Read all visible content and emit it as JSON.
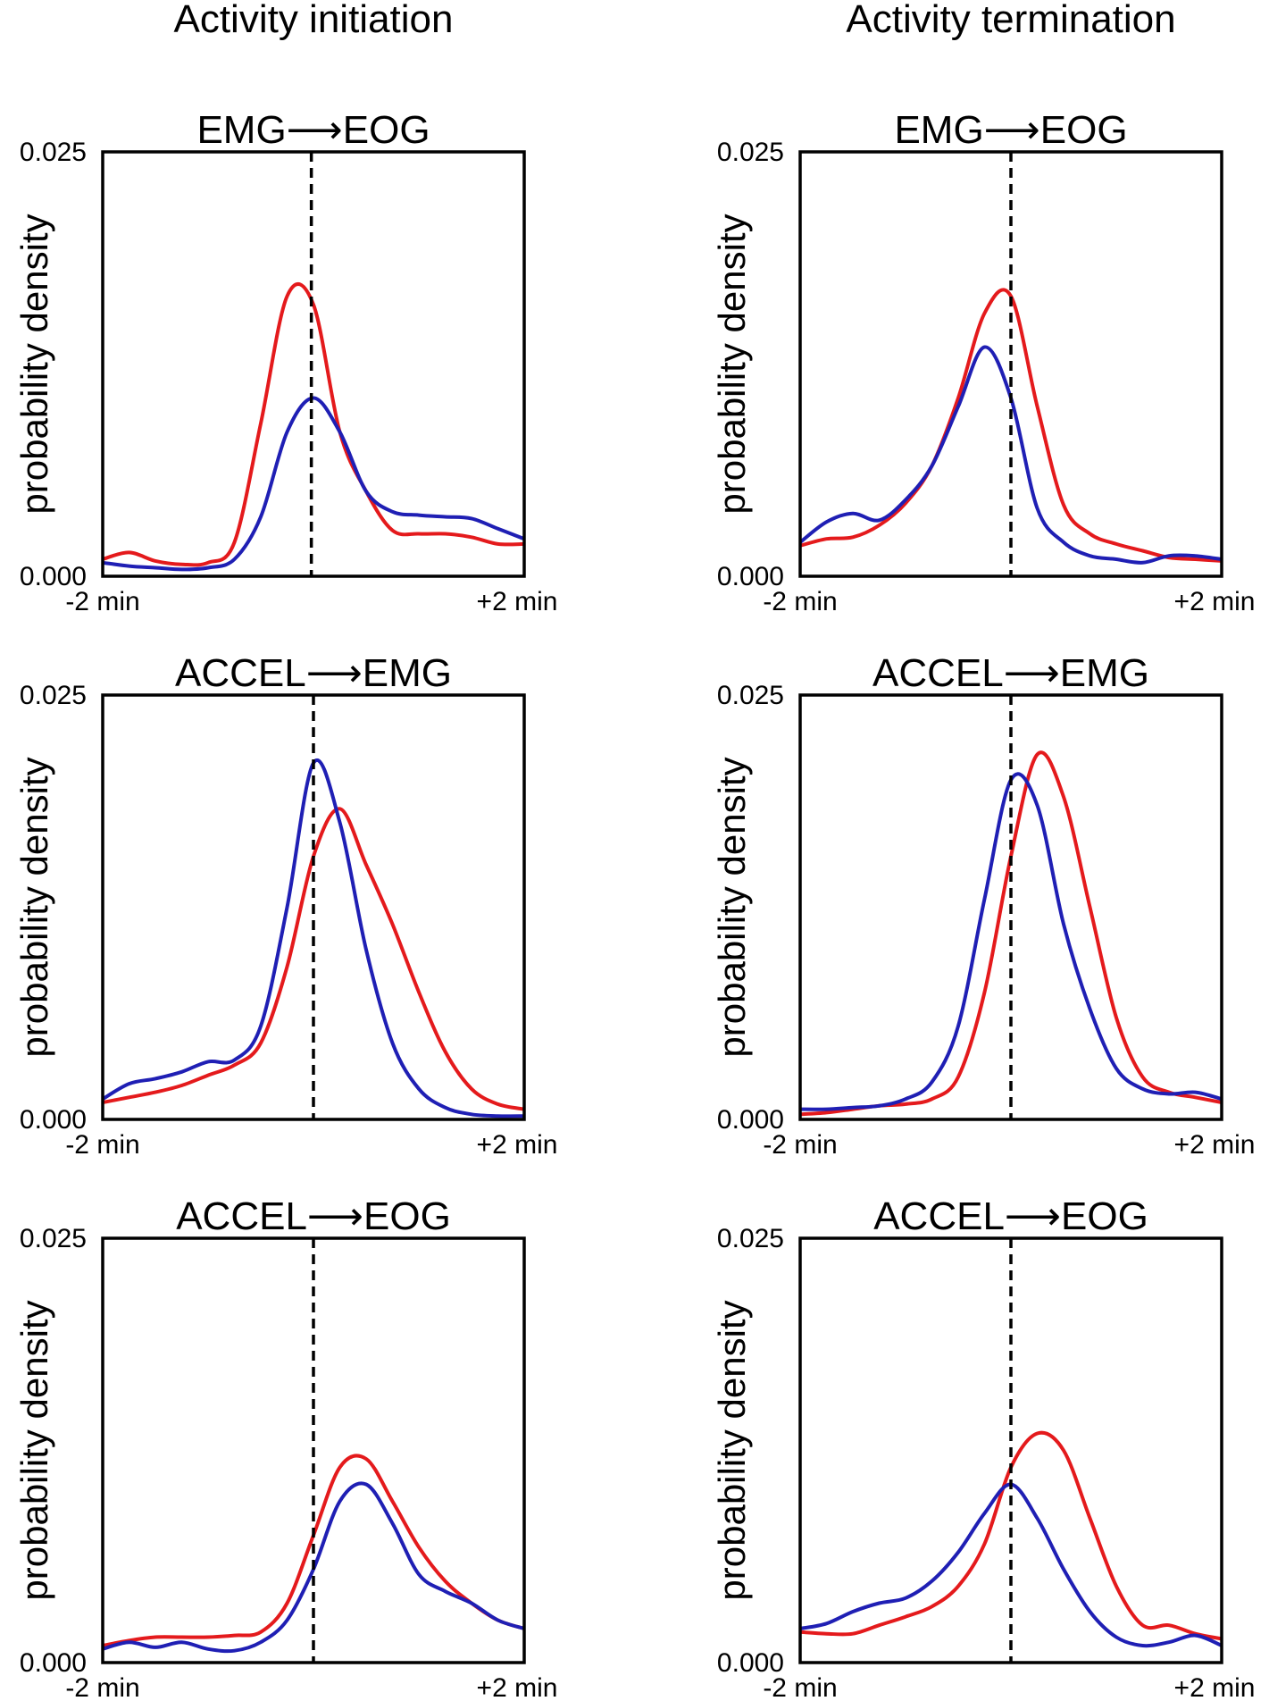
{
  "column_titles": [
    "Activity initiation",
    "Activity termination"
  ],
  "series_colors": {
    "series_a": "#e41a1c",
    "series_b": "#1f1fb4",
    "marker": "#000000"
  },
  "chart_data": [
    {
      "type": "line",
      "column": 0,
      "row": 0,
      "title": "EMG⟶EOG",
      "ylabel": "probability density",
      "xtick_labels": [
        "-2 min",
        "+2 min"
      ],
      "ytick_labels": [
        "0.000",
        "0.025"
      ],
      "xlim": [
        -2,
        2
      ],
      "ylim": [
        0,
        0.025
      ],
      "marker_x": -0.02,
      "x": [
        -2.0,
        -1.75,
        -1.5,
        -1.25,
        -1.0,
        -0.75,
        -0.5,
        -0.25,
        0.0,
        0.25,
        0.5,
        0.75,
        1.0,
        1.25,
        1.5,
        1.75,
        2.0
      ],
      "series": [
        {
          "name": "series_a",
          "color": "#e41a1c",
          "values": [
            0.001,
            0.0014,
            0.0009,
            0.0007,
            0.0008,
            0.002,
            0.009,
            0.0165,
            0.016,
            0.0085,
            0.005,
            0.0027,
            0.0025,
            0.0025,
            0.0023,
            0.0019,
            0.0019
          ]
        },
        {
          "name": "series_b",
          "color": "#1f1fb4",
          "values": [
            0.0008,
            0.0006,
            0.0005,
            0.0004,
            0.0005,
            0.001,
            0.0035,
            0.0085,
            0.0105,
            0.0085,
            0.005,
            0.0038,
            0.0036,
            0.0035,
            0.0034,
            0.0028,
            0.0022
          ]
        }
      ]
    },
    {
      "type": "line",
      "column": 1,
      "row": 0,
      "title": "EMG⟶EOG",
      "ylabel": "probability density",
      "xtick_labels": [
        "-2 min",
        "+2 min"
      ],
      "ytick_labels": [
        "0.000",
        "0.025"
      ],
      "xlim": [
        -2,
        2
      ],
      "ylim": [
        0,
        0.025
      ],
      "marker_x": 0.0,
      "x": [
        -2.0,
        -1.75,
        -1.5,
        -1.25,
        -1.0,
        -0.75,
        -0.5,
        -0.25,
        0.0,
        0.25,
        0.5,
        0.75,
        1.0,
        1.25,
        1.5,
        1.75,
        2.0
      ],
      "series": [
        {
          "name": "series_a",
          "color": "#e41a1c",
          "values": [
            0.0018,
            0.0022,
            0.0023,
            0.003,
            0.0043,
            0.0065,
            0.0105,
            0.0155,
            0.0165,
            0.01,
            0.0042,
            0.0025,
            0.0019,
            0.0015,
            0.0011,
            0.001,
            0.0009
          ]
        },
        {
          "name": "series_b",
          "color": "#1f1fb4",
          "values": [
            0.002,
            0.0032,
            0.0037,
            0.0033,
            0.0045,
            0.0065,
            0.01,
            0.0135,
            0.0105,
            0.004,
            0.002,
            0.0012,
            0.001,
            0.0008,
            0.0012,
            0.0012,
            0.001
          ]
        }
      ]
    },
    {
      "type": "line",
      "column": 0,
      "row": 1,
      "title": "ACCEL⟶EMG",
      "ylabel": "probability density",
      "xtick_labels": [
        "-2 min",
        "+2 min"
      ],
      "ytick_labels": [
        "0.000",
        "0.025"
      ],
      "xlim": [
        -2,
        2
      ],
      "ylim": [
        0,
        0.025
      ],
      "marker_x": 0.0,
      "x": [
        -2.0,
        -1.75,
        -1.5,
        -1.25,
        -1.0,
        -0.75,
        -0.5,
        -0.25,
        0.0,
        0.25,
        0.5,
        0.75,
        1.0,
        1.25,
        1.5,
        1.75,
        2.0
      ],
      "series": [
        {
          "name": "series_a",
          "color": "#e41a1c",
          "values": [
            0.001,
            0.0013,
            0.0016,
            0.002,
            0.0026,
            0.0032,
            0.0045,
            0.009,
            0.0155,
            0.0183,
            0.015,
            0.0115,
            0.0075,
            0.004,
            0.0018,
            0.0009,
            0.0006
          ]
        },
        {
          "name": "series_b",
          "color": "#1f1fb4",
          "values": [
            0.0012,
            0.0021,
            0.0024,
            0.0028,
            0.0034,
            0.0035,
            0.0055,
            0.0125,
            0.021,
            0.0175,
            0.01,
            0.0045,
            0.0018,
            0.0007,
            0.0003,
            0.0002,
            0.0002
          ]
        }
      ]
    },
    {
      "type": "line",
      "column": 1,
      "row": 1,
      "title": "ACCEL⟶EMG",
      "ylabel": "probability density",
      "xtick_labels": [
        "-2 min",
        "+2 min"
      ],
      "ytick_labels": [
        "0.000",
        "0.025"
      ],
      "xlim": [
        -2,
        2
      ],
      "ylim": [
        0,
        0.025
      ],
      "marker_x": 0.0,
      "x": [
        -2.0,
        -1.75,
        -1.5,
        -1.25,
        -1.0,
        -0.75,
        -0.5,
        -0.25,
        0.0,
        0.25,
        0.5,
        0.75,
        1.0,
        1.25,
        1.5,
        1.75,
        2.0
      ],
      "series": [
        {
          "name": "series_a",
          "color": "#e41a1c",
          "values": [
            0.0003,
            0.0004,
            0.0006,
            0.0008,
            0.0009,
            0.0012,
            0.0025,
            0.0075,
            0.0155,
            0.0215,
            0.019,
            0.0125,
            0.006,
            0.0025,
            0.0016,
            0.0013,
            0.001
          ]
        },
        {
          "name": "series_b",
          "color": "#1f1fb4",
          "values": [
            0.0006,
            0.0006,
            0.0007,
            0.0008,
            0.0012,
            0.0022,
            0.0055,
            0.013,
            0.02,
            0.0185,
            0.0115,
            0.0065,
            0.003,
            0.0018,
            0.0015,
            0.0016,
            0.0012
          ]
        }
      ]
    },
    {
      "type": "line",
      "column": 0,
      "row": 2,
      "title": "ACCEL⟶EOG",
      "ylabel": "probability density",
      "xtick_labels": [
        "-2 min",
        "+2 min"
      ],
      "ytick_labels": [
        "0.000",
        "0.025"
      ],
      "xlim": [
        -2,
        2
      ],
      "ylim": [
        0,
        0.025
      ],
      "marker_x": 0.0,
      "x": [
        -2.0,
        -1.75,
        -1.5,
        -1.25,
        -1.0,
        -0.75,
        -0.5,
        -0.25,
        0.0,
        0.25,
        0.5,
        0.75,
        1.0,
        1.25,
        1.5,
        1.75,
        2.0
      ],
      "series": [
        {
          "name": "series_a",
          "color": "#e41a1c",
          "values": [
            0.001,
            0.0013,
            0.0015,
            0.0015,
            0.0015,
            0.0016,
            0.0018,
            0.0035,
            0.0075,
            0.0115,
            0.012,
            0.0095,
            0.0068,
            0.0048,
            0.0035,
            0.0025,
            0.002
          ]
        },
        {
          "name": "series_b",
          "color": "#1f1fb4",
          "values": [
            0.0008,
            0.0012,
            0.0009,
            0.0012,
            0.0008,
            0.0007,
            0.0012,
            0.0025,
            0.0055,
            0.0095,
            0.0105,
            0.0082,
            0.0052,
            0.0042,
            0.0035,
            0.0025,
            0.002
          ]
        }
      ]
    },
    {
      "type": "line",
      "column": 1,
      "row": 2,
      "title": "ACCEL⟶EOG",
      "ylabel": "probability density",
      "xtick_labels": [
        "-2 min",
        "+2 min"
      ],
      "ytick_labels": [
        "0.000",
        "0.025"
      ],
      "xlim": [
        -2,
        2
      ],
      "ylim": [
        0,
        0.025
      ],
      "marker_x": 0.0,
      "x": [
        -2.0,
        -1.75,
        -1.5,
        -1.25,
        -1.0,
        -0.75,
        -0.5,
        -0.25,
        0.0,
        0.25,
        0.5,
        0.75,
        1.0,
        1.25,
        1.5,
        1.75,
        2.0
      ],
      "series": [
        {
          "name": "series_a",
          "color": "#e41a1c",
          "values": [
            0.0018,
            0.0017,
            0.0017,
            0.0022,
            0.0027,
            0.0033,
            0.0045,
            0.007,
            0.0115,
            0.0135,
            0.0125,
            0.0085,
            0.0045,
            0.0022,
            0.0022,
            0.0017,
            0.0014
          ]
        },
        {
          "name": "series_b",
          "color": "#1f1fb4",
          "values": [
            0.002,
            0.0023,
            0.003,
            0.0035,
            0.0038,
            0.0048,
            0.0065,
            0.0088,
            0.0105,
            0.0085,
            0.0055,
            0.003,
            0.0015,
            0.001,
            0.0012,
            0.0016,
            0.001
          ]
        }
      ]
    }
  ]
}
